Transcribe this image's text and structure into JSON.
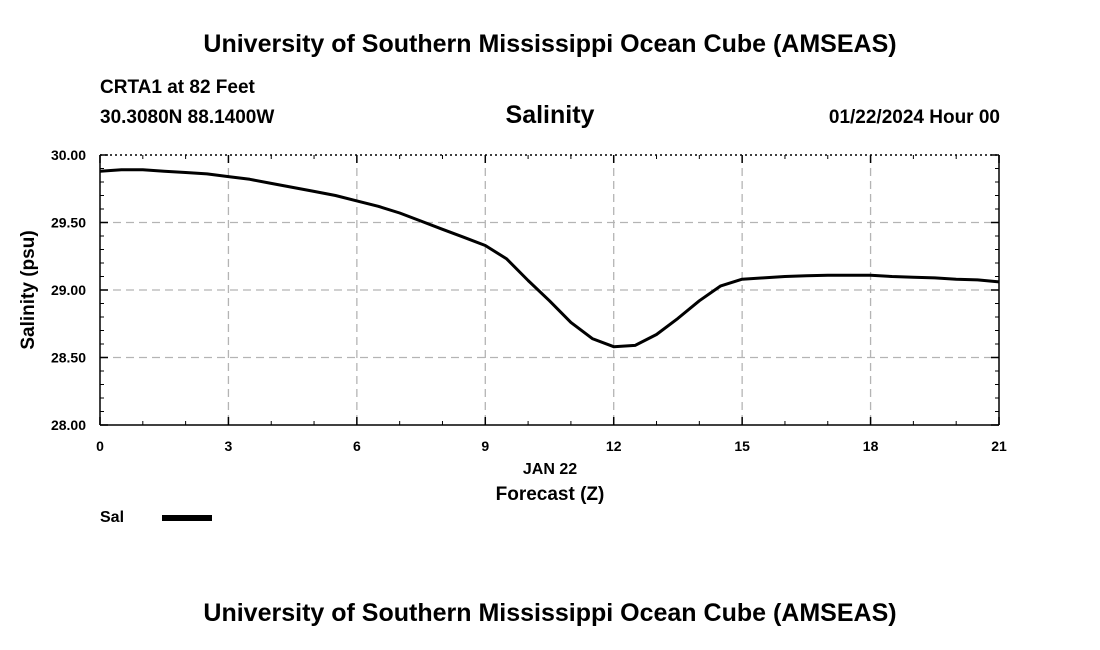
{
  "header": {
    "title": "University of Southern Mississippi Ocean Cube (AMSEAS)",
    "station": "CRTA1 at 82 Feet",
    "coords": "30.3080N  88.1400W",
    "datetime": "01/22/2024 Hour 00"
  },
  "footer": {
    "title": "University of Southern Mississippi Ocean Cube (AMSEAS)"
  },
  "legend": {
    "label": "Sal"
  },
  "chart_data": {
    "type": "line",
    "title": "Salinity",
    "xlabel": "Forecast (Z)",
    "xlabel_date": "JAN 22",
    "ylabel": "Salinity (psu)",
    "xlim": [
      0,
      21
    ],
    "ylim": [
      28.0,
      30.0
    ],
    "xticks": [
      0,
      3,
      6,
      9,
      12,
      15,
      18,
      21
    ],
    "xtick_labels": [
      "0",
      "3",
      "6",
      "9",
      "12",
      "15",
      "18",
      "21"
    ],
    "yticks": [
      28.0,
      28.5,
      29.0,
      29.5,
      30.0
    ],
    "ytick_labels": [
      "28.00",
      "28.50",
      "29.00",
      "29.50",
      "30.00"
    ],
    "grid": true,
    "line_color": "#000000",
    "series": [
      {
        "name": "Sal",
        "x": [
          0,
          0.5,
          1,
          1.5,
          2,
          2.5,
          3,
          3.5,
          4,
          4.5,
          5,
          5.5,
          6,
          6.5,
          7,
          7.5,
          8,
          8.5,
          9,
          9.5,
          10,
          10.5,
          11,
          11.5,
          12,
          12.5,
          13,
          13.5,
          14,
          14.5,
          15,
          15.5,
          16,
          16.5,
          17,
          17.5,
          18,
          18.5,
          19,
          19.5,
          20,
          20.5,
          21
        ],
        "y": [
          29.88,
          29.89,
          29.89,
          29.88,
          29.87,
          29.86,
          29.84,
          29.82,
          29.79,
          29.76,
          29.73,
          29.7,
          29.66,
          29.62,
          29.57,
          29.51,
          29.45,
          29.39,
          29.33,
          29.23,
          29.07,
          28.92,
          28.76,
          28.64,
          28.58,
          28.59,
          28.67,
          28.79,
          28.92,
          29.03,
          29.08,
          29.09,
          29.1,
          29.105,
          29.11,
          29.11,
          29.11,
          29.1,
          29.095,
          29.09,
          29.08,
          29.075,
          29.06
        ]
      }
    ]
  }
}
